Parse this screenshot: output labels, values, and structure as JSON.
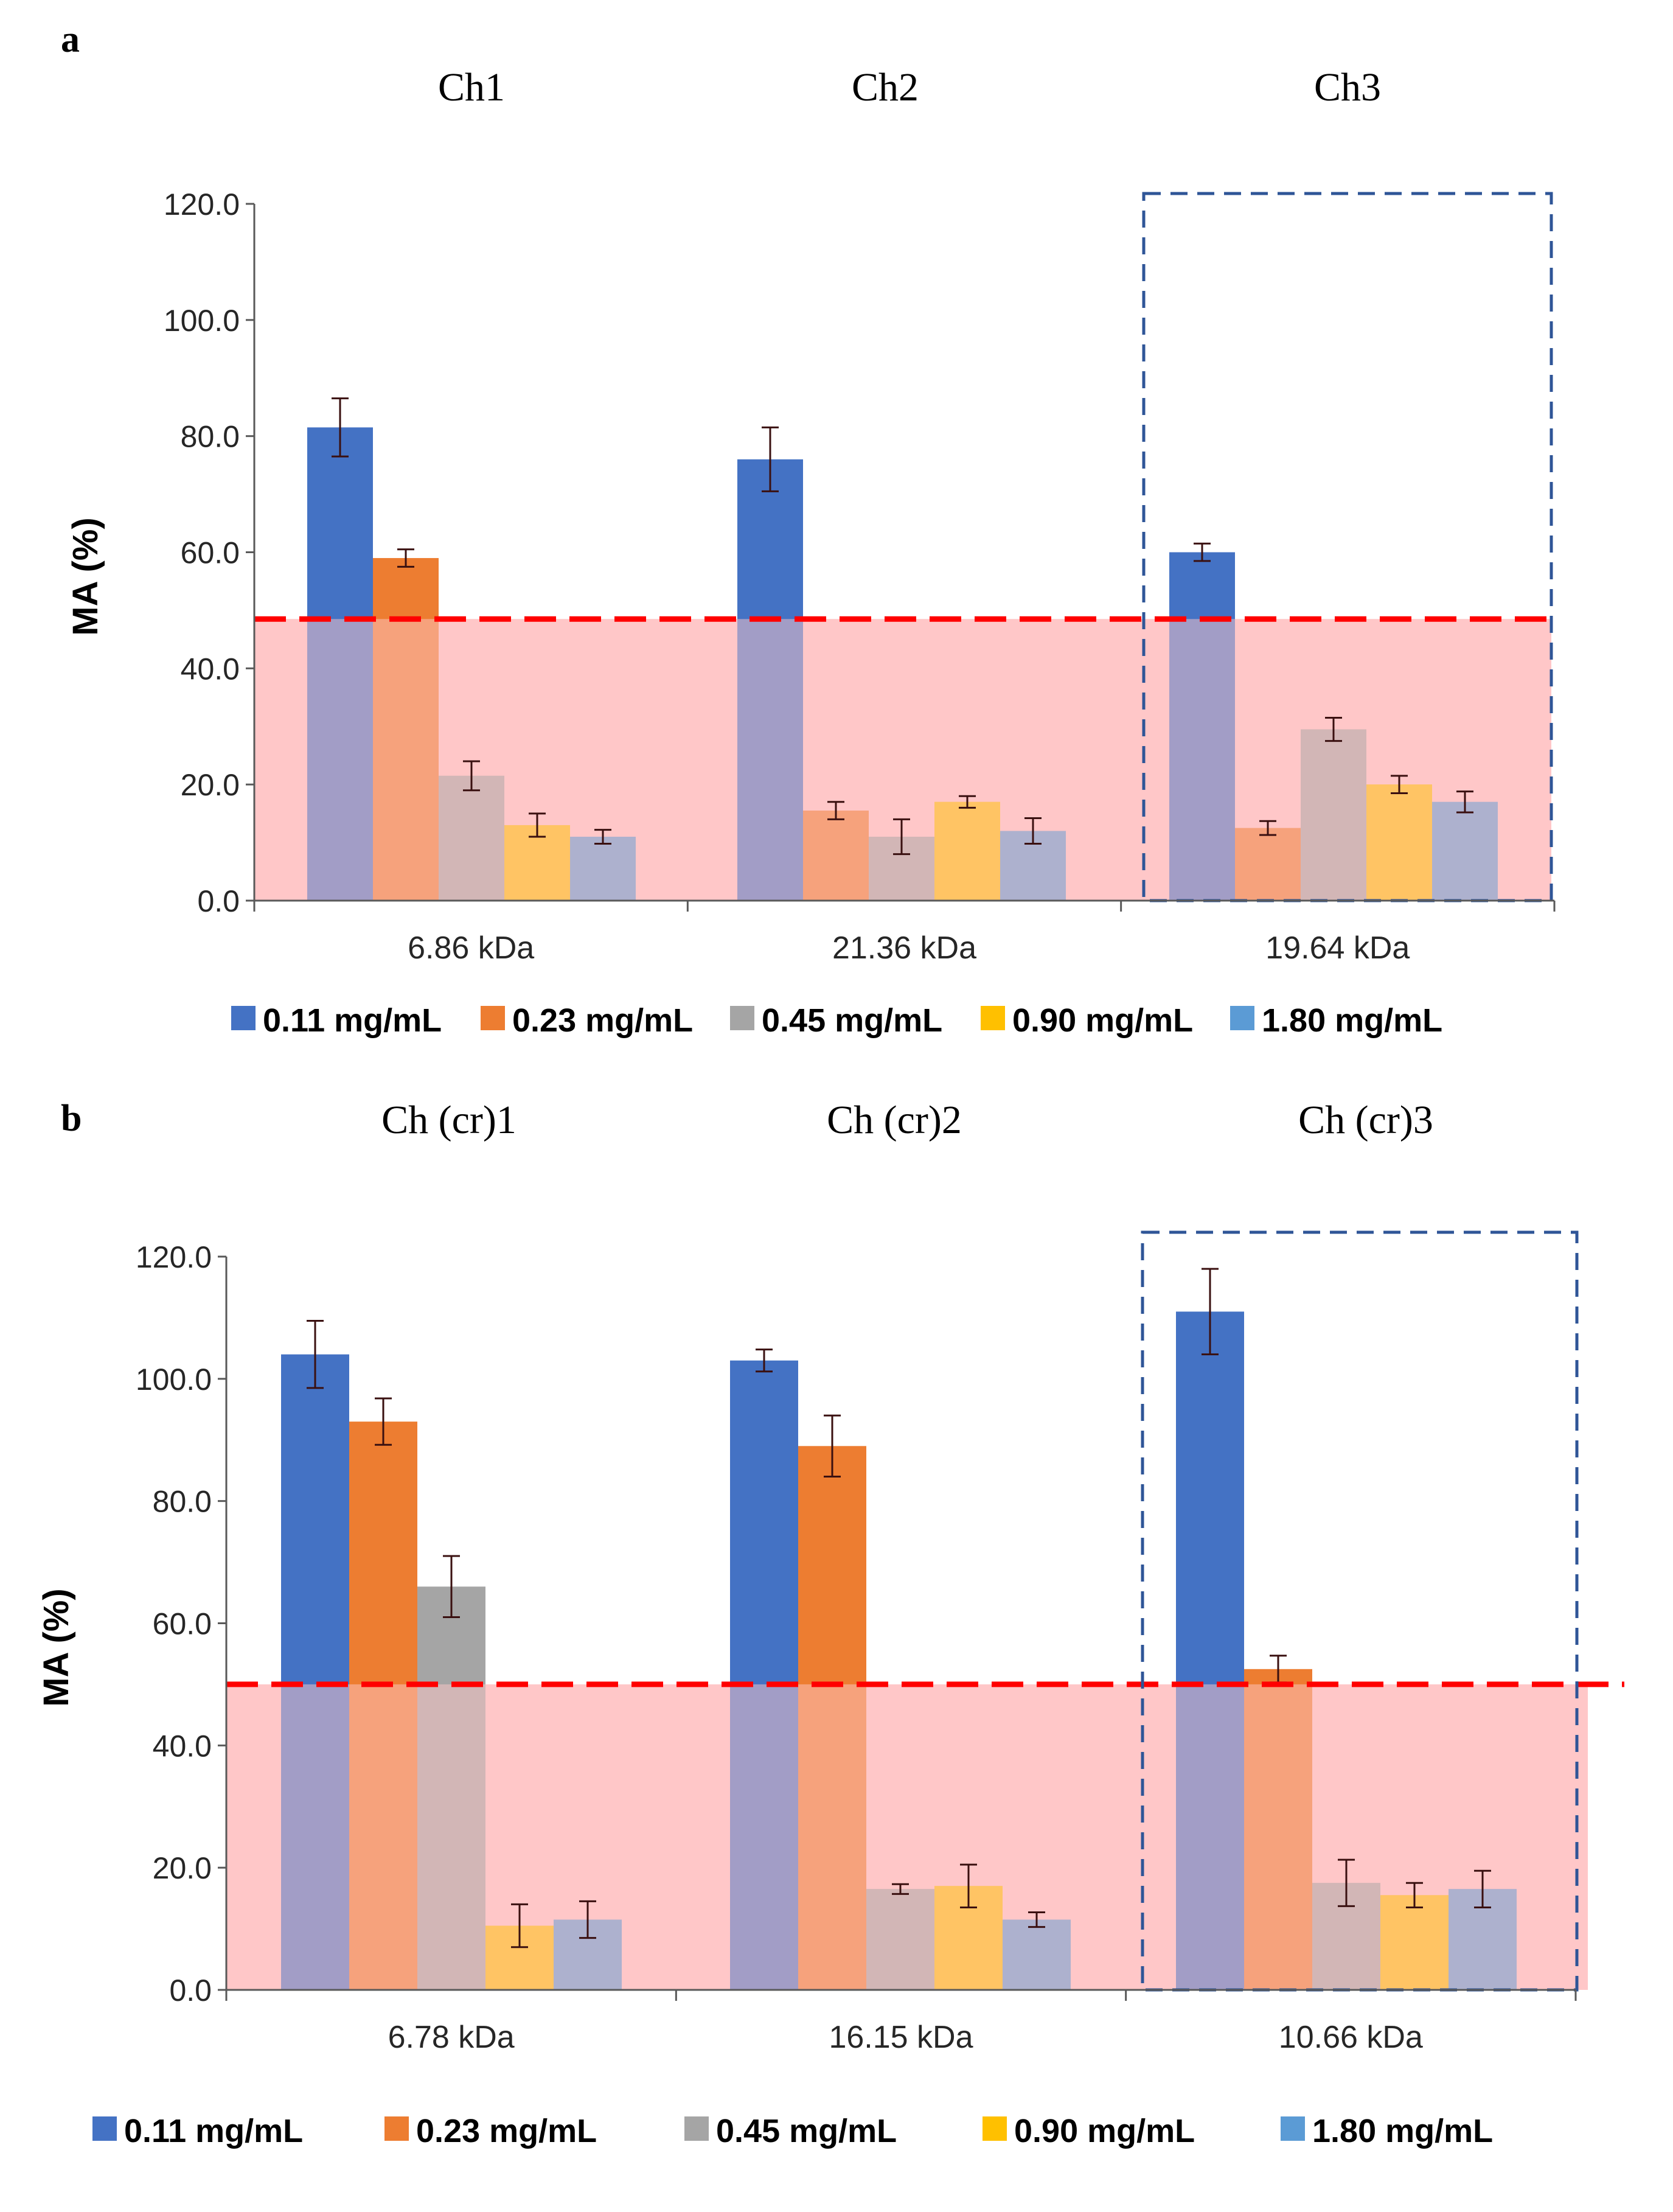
{
  "colors": {
    "c1": "#4472C4",
    "c2": "#ED7D31",
    "c3": "#A5A5A5",
    "c4": "#FFC000",
    "c5": "#5B9BD5",
    "shade": "#FFC7C8",
    "threshold": "#FF0000",
    "box": "#2F5597",
    "err": "#3A1010",
    "axis": "#595959"
  },
  "legend": [
    "0.11 mg/mL",
    "0.23 mg/mL",
    "0.45 mg/mL",
    "0.90 mg/mL",
    "1.80 mg/mL"
  ],
  "chart_data": [
    {
      "panel_label": "a",
      "type": "bar",
      "group_titles": [
        "Ch1",
        "Ch2",
        "Ch3"
      ],
      "categories": [
        "6.86 kDa",
        "21.36 kDa",
        "19.64 kDa"
      ],
      "ylabel": "MA (%)",
      "ylim": [
        0,
        120
      ],
      "yticks": [
        "0.0",
        "20.0",
        "40.0",
        "60.0",
        "80.0",
        "100.0",
        "120.0"
      ],
      "threshold": 48.5,
      "highlighted_group": 2,
      "series": [
        {
          "name": "0.11 mg/mL",
          "values": [
            81.5,
            76.0,
            60.0
          ],
          "errors": [
            5.0,
            5.5,
            1.5
          ]
        },
        {
          "name": "0.23 mg/mL",
          "values": [
            59.0,
            15.5,
            12.5
          ],
          "errors": [
            1.5,
            1.5,
            1.2
          ]
        },
        {
          "name": "0.45 mg/mL",
          "values": [
            21.5,
            11.0,
            29.5
          ],
          "errors": [
            2.5,
            3.0,
            2.0
          ]
        },
        {
          "name": "0.90 mg/mL",
          "values": [
            13.0,
            17.0,
            20.0
          ],
          "errors": [
            2.0,
            1.0,
            1.5
          ]
        },
        {
          "name": "1.80 mg/mL",
          "values": [
            11.0,
            12.0,
            17.0
          ],
          "errors": [
            1.2,
            2.2,
            1.8
          ]
        }
      ]
    },
    {
      "panel_label": "b",
      "type": "bar",
      "group_titles": [
        "Ch (cr)1",
        "Ch (cr)2",
        "Ch (cr)3"
      ],
      "categories": [
        "6.78 kDa",
        "16.15 kDa",
        "10.66 kDa"
      ],
      "ylabel": "MA (%)",
      "ylim": [
        0,
        120
      ],
      "yticks": [
        "0.0",
        "20.0",
        "40.0",
        "60.0",
        "80.0",
        "100.0",
        "120.0"
      ],
      "threshold": 50.0,
      "highlighted_group": 2,
      "series": [
        {
          "name": "0.11 mg/mL",
          "values": [
            104.0,
            103.0,
            111.0
          ],
          "errors": [
            5.5,
            1.8,
            7.0
          ]
        },
        {
          "name": "0.23 mg/mL",
          "values": [
            93.0,
            89.0,
            52.5
          ],
          "errors": [
            3.8,
            5.0,
            2.2
          ]
        },
        {
          "name": "0.45 mg/mL",
          "values": [
            66.0,
            16.5,
            17.5
          ],
          "errors": [
            5.0,
            0.8,
            3.8
          ]
        },
        {
          "name": "0.90 mg/mL",
          "values": [
            10.5,
            17.0,
            15.5
          ],
          "errors": [
            3.5,
            3.5,
            2.0
          ]
        },
        {
          "name": "1.80 mg/mL",
          "values": [
            11.5,
            11.5,
            16.5
          ],
          "errors": [
            3.0,
            1.2,
            3.0
          ]
        }
      ]
    }
  ]
}
